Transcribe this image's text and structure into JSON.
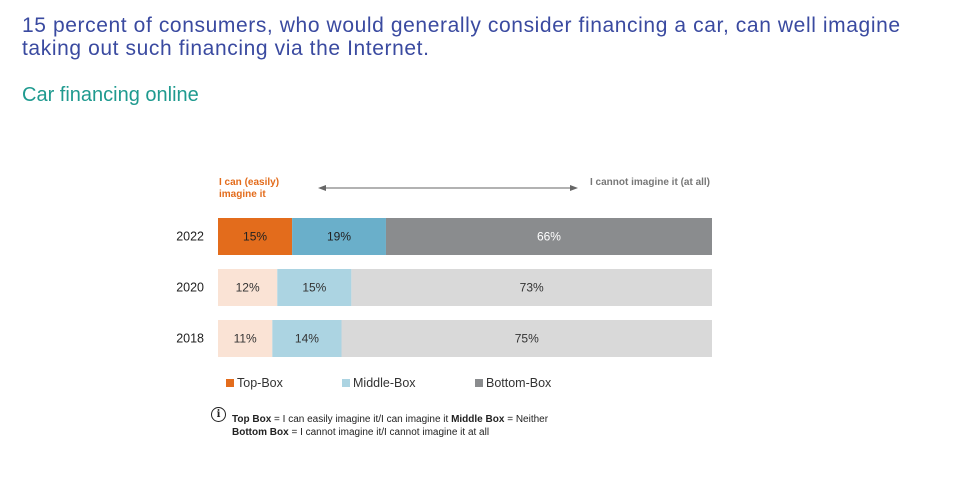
{
  "headline": "15 percent of consumers, who would generally consider financing a car, can well imagine taking out such financing via the Internet.",
  "subtitle": "Car financing online",
  "scale": {
    "left_label": "I can (easily) imagine it",
    "right_label": "I cannot imagine it (at all)"
  },
  "colors": {
    "top_highlight": "#e36c1c",
    "middle_highlight": "#6aafca",
    "bottom_highlight": "#8a8c8e",
    "top_light": "#fae3d5",
    "middle_light": "#acd4e2",
    "bottom_light": "#d9d9d9"
  },
  "chart_data": {
    "type": "bar",
    "orientation": "horizontal",
    "stacked": "100%",
    "categories": [
      "2022",
      "2020",
      "2018"
    ],
    "series": [
      {
        "name": "Top-Box",
        "values": [
          15,
          12,
          11
        ],
        "labels": [
          "15%",
          "12%",
          "11%"
        ]
      },
      {
        "name": "Middle-Box",
        "values": [
          19,
          15,
          14
        ],
        "labels": [
          "19%",
          "15%",
          "14%"
        ]
      },
      {
        "name": "Bottom-Box",
        "values": [
          66,
          73,
          75
        ],
        "labels": [
          "66%",
          "73%",
          "75%"
        ]
      }
    ],
    "highlighted_category": "2022",
    "xlim": [
      0,
      100
    ],
    "legend_position": "bottom",
    "grid": false
  },
  "legend": [
    {
      "label": "Top-Box",
      "color": "#e36c1c"
    },
    {
      "label": "Middle-Box",
      "color": "#acd4e2"
    },
    {
      "label": "Bottom-Box",
      "color": "#8a8c8e"
    }
  ],
  "note": {
    "icon": "info-icon",
    "top_box_term": "Top Box",
    "top_box_def": " = I can easily imagine it/I can imagine it ",
    "middle_box_term": "Middle Box",
    "middle_box_def": " = Neither",
    "bottom_box_term": "Bottom Box",
    "bottom_box_def": " = I cannot imagine it/I cannot imagine it at all"
  }
}
